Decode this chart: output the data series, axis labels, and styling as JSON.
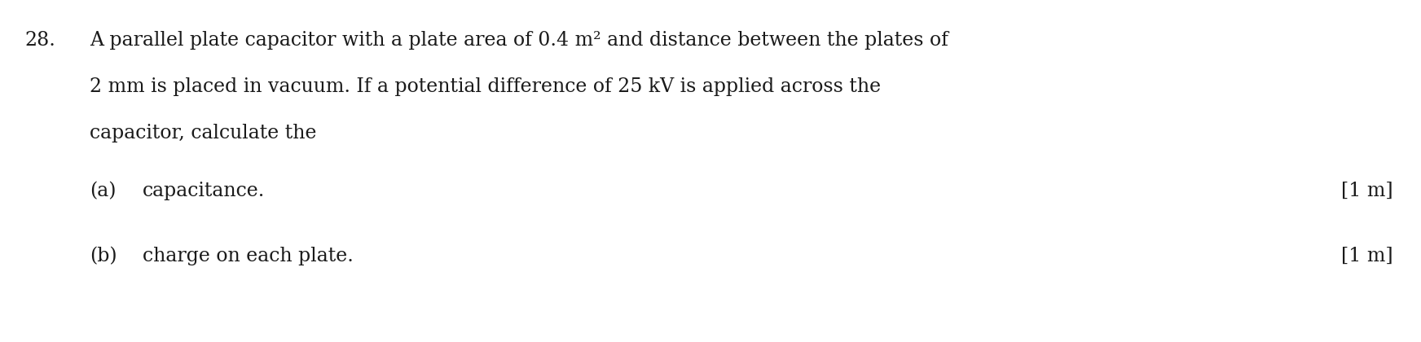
{
  "background_color": "#ffffff",
  "text_color": "#1a1a1a",
  "question_number": "28.",
  "line1": "A parallel plate capacitor with a plate area of 0.4 m² and distance between the plates of",
  "line2": "2 mm is placed in vacuum. If a potential difference of 25 kV is applied across the",
  "line3": "capacitor, calculate the",
  "part_a_label": "(a)",
  "part_a_text": "capacitance.",
  "part_a_mark": "[1 m]",
  "part_b_label": "(b)",
  "part_b_text": "charge on each plate.",
  "part_b_mark": "[1 m]",
  "font_size_main": 17.0,
  "fig_width": 17.44,
  "fig_height": 4.2,
  "dpi": 100
}
